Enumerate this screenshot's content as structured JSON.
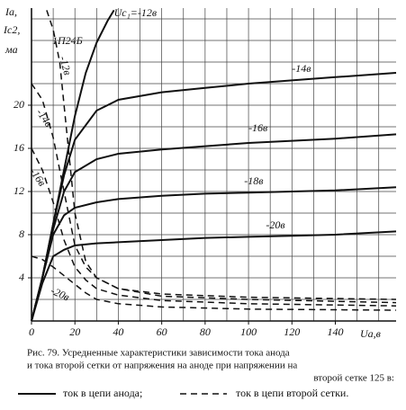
{
  "chart_data": {
    "type": "line",
    "title": "1П24Б",
    "ylabel": [
      "Iа,",
      "Iс2,",
      "ма"
    ],
    "xlabel": "Uа,в",
    "xlim": [
      0,
      168
    ],
    "ylim": [
      0,
      29
    ],
    "xticks": [
      0,
      20,
      40,
      60,
      80,
      100,
      120,
      140
    ],
    "yticks": [
      4,
      8,
      12,
      16,
      20
    ],
    "xgrid": [
      10,
      20,
      30,
      40,
      50,
      60,
      70,
      80,
      90,
      100,
      110,
      120,
      130,
      140,
      150,
      160
    ],
    "ygrid": [
      2,
      4,
      6,
      8,
      10,
      12,
      14,
      16,
      18,
      20,
      22,
      24,
      26,
      28
    ],
    "color": "#111111",
    "series": [
      {
        "name": "Uc₁=-12в",
        "style": "solid",
        "x": [
          0,
          5,
          10,
          15,
          20,
          25,
          30,
          35,
          38
        ],
        "values": [
          0,
          4,
          9,
          14,
          19,
          23,
          25.8,
          27.8,
          28.8
        ]
      },
      {
        "name": "-14в",
        "style": "solid",
        "x": [
          0,
          5,
          10,
          15,
          20,
          30,
          40,
          60,
          80,
          100,
          120,
          140,
          168
        ],
        "values": [
          0,
          4,
          9,
          13.5,
          16.8,
          19.5,
          20.5,
          21.2,
          21.6,
          22,
          22.3,
          22.6,
          23
        ]
      },
      {
        "name": "-16в",
        "style": "solid",
        "x": [
          0,
          5,
          10,
          15,
          20,
          30,
          40,
          60,
          80,
          100,
          120,
          140,
          168
        ],
        "values": [
          0,
          4,
          8.5,
          12,
          13.8,
          15,
          15.5,
          15.9,
          16.2,
          16.5,
          16.7,
          16.9,
          17.3
        ]
      },
      {
        "name": "-18в",
        "style": "solid",
        "x": [
          0,
          5,
          10,
          15,
          20,
          30,
          40,
          60,
          80,
          100,
          120,
          140,
          168
        ],
        "values": [
          0,
          4,
          8,
          9.8,
          10.5,
          11,
          11.3,
          11.6,
          11.8,
          11.9,
          12,
          12.1,
          12.4
        ]
      },
      {
        "name": "-20в",
        "style": "solid",
        "x": [
          0,
          5,
          10,
          15,
          20,
          30,
          40,
          60,
          80,
          100,
          120,
          140,
          168
        ],
        "values": [
          0,
          3.5,
          6,
          6.6,
          7,
          7.2,
          7.3,
          7.5,
          7.7,
          7.8,
          7.9,
          8,
          8.3
        ]
      },
      {
        "name": "-12в",
        "style": "dashed",
        "x": [
          7,
          10,
          13,
          16,
          20,
          25,
          30,
          40,
          60,
          100,
          168
        ],
        "values": [
          28.8,
          27,
          24,
          18,
          10,
          5.5,
          4,
          3,
          2.5,
          2.2,
          2
        ]
      },
      {
        "name": "-14в",
        "style": "dashed",
        "x": [
          0,
          5,
          10,
          15,
          20,
          25,
          30,
          40,
          60,
          100,
          168
        ],
        "values": [
          22,
          20.5,
          17,
          12,
          7,
          5,
          4,
          3,
          2.3,
          2,
          1.7
        ]
      },
      {
        "name": "-16в",
        "style": "dashed",
        "x": [
          0,
          5,
          10,
          15,
          20,
          25,
          30,
          40,
          60,
          100,
          168
        ],
        "values": [
          16,
          14,
          11,
          7.5,
          5,
          3.8,
          3,
          2.4,
          1.9,
          1.6,
          1.4
        ]
      },
      {
        "name": "-20в",
        "style": "dashed",
        "x": [
          0,
          5,
          10,
          15,
          20,
          25,
          30,
          40,
          60,
          100,
          168
        ],
        "values": [
          6,
          5.7,
          5,
          4.2,
          3.4,
          2.6,
          2,
          1.6,
          1.3,
          1.1,
          1
        ]
      }
    ],
    "caption": [
      "Рис. 79. Усредненные характеристики зависимости тока анода",
      "и тока второй сетки от напряжения на аноде при напряжении на",
      "второй сетке 125 в:"
    ],
    "legend": [
      "ток в цепи анода;",
      "ток в цепи второй сетки."
    ]
  }
}
